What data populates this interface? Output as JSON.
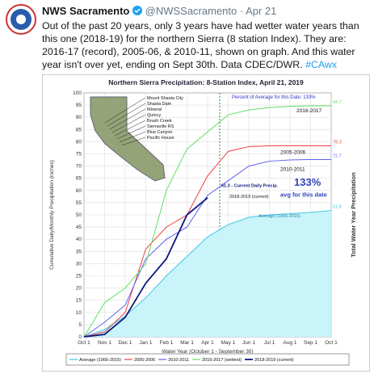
{
  "tweet": {
    "name": "NWS Sacramento",
    "handle": "@NWSSacramento",
    "date": "Apr 21",
    "text": "Out of the past 20 years, only 3 years have had wetter water years than this one (2018-19) for the northern Sierra (8 station Index). They are: 2016-17 (record), 2005-06, & 2010-11, shown on graph. And this water year isn't over yet, ending on Sept 30th. Data CDEC/DWR.",
    "hashtag": "#CAwx"
  },
  "chart_data": {
    "type": "line",
    "title": "Northern Sierra Precipitation: 8-Station Index, April 21, 2019",
    "xlabel": "Water Year (October 1 - September 30)",
    "ylabel": "Cumulative Daily/Monthly Precipitation (inches)",
    "y2label": "Total Water Year Precipitation",
    "categories": [
      "Oct 1",
      "Nov 1",
      "Dec 1",
      "Jan 1",
      "Feb 1",
      "Mar 1",
      "Apr 1",
      "May 1",
      "Jun 1",
      "Jul 1",
      "Aug 1",
      "Sep 1",
      "Oct 1"
    ],
    "series": [
      {
        "name": "Average (1966-2015)",
        "color": "#40c8e8",
        "values": [
          0,
          3,
          8.5,
          16,
          25,
          33,
          41,
          46,
          49,
          50,
          50.5,
          51,
          51.8
        ]
      },
      {
        "name": "2005-2006",
        "color": "#f04040",
        "values": [
          0,
          2,
          10,
          36,
          45,
          50,
          66,
          76,
          78,
          78.3,
          78.3,
          78.3,
          78.3
        ]
      },
      {
        "name": "2010-2011",
        "color": "#6060f0",
        "values": [
          0,
          6,
          13,
          32,
          40,
          45,
          58,
          64,
          70,
          72,
          72.5,
          72.7,
          72.7
        ]
      },
      {
        "name": "2016-2017 (wettest)",
        "color": "#60e060",
        "values": [
          0,
          14,
          20,
          30,
          60,
          77,
          84,
          91,
          93,
          94,
          94.5,
          94.7,
          94.7
        ]
      },
      {
        "name": "2018-2019 (current)",
        "color": "#101880",
        "values": [
          0,
          1,
          8,
          22,
          32,
          50,
          57,
          null,
          null,
          null,
          null,
          null,
          null
        ]
      }
    ],
    "ylim": [
      0,
      100
    ],
    "yticks": [
      0,
      5,
      10,
      15,
      20,
      25,
      30,
      35,
      40,
      45,
      50,
      55,
      60,
      65,
      70,
      75,
      80,
      85,
      90,
      95,
      100
    ],
    "grid": true,
    "annotations": {
      "percent": "Percent of Average for this Date: 133%",
      "big": "133%",
      "avg": "avg for this date",
      "current": "61.3 -  Current Daily Precip.",
      "label2017": "2016-2017",
      "labelAvg": "Average (1966-2015)"
    },
    "stations": [
      "Mount Shasta City",
      "Shasta Dam",
      "Mineral",
      "Quincy",
      "Brush Creek",
      "Sierraville RS",
      "Blue Canyon",
      "Pacific House"
    ]
  }
}
